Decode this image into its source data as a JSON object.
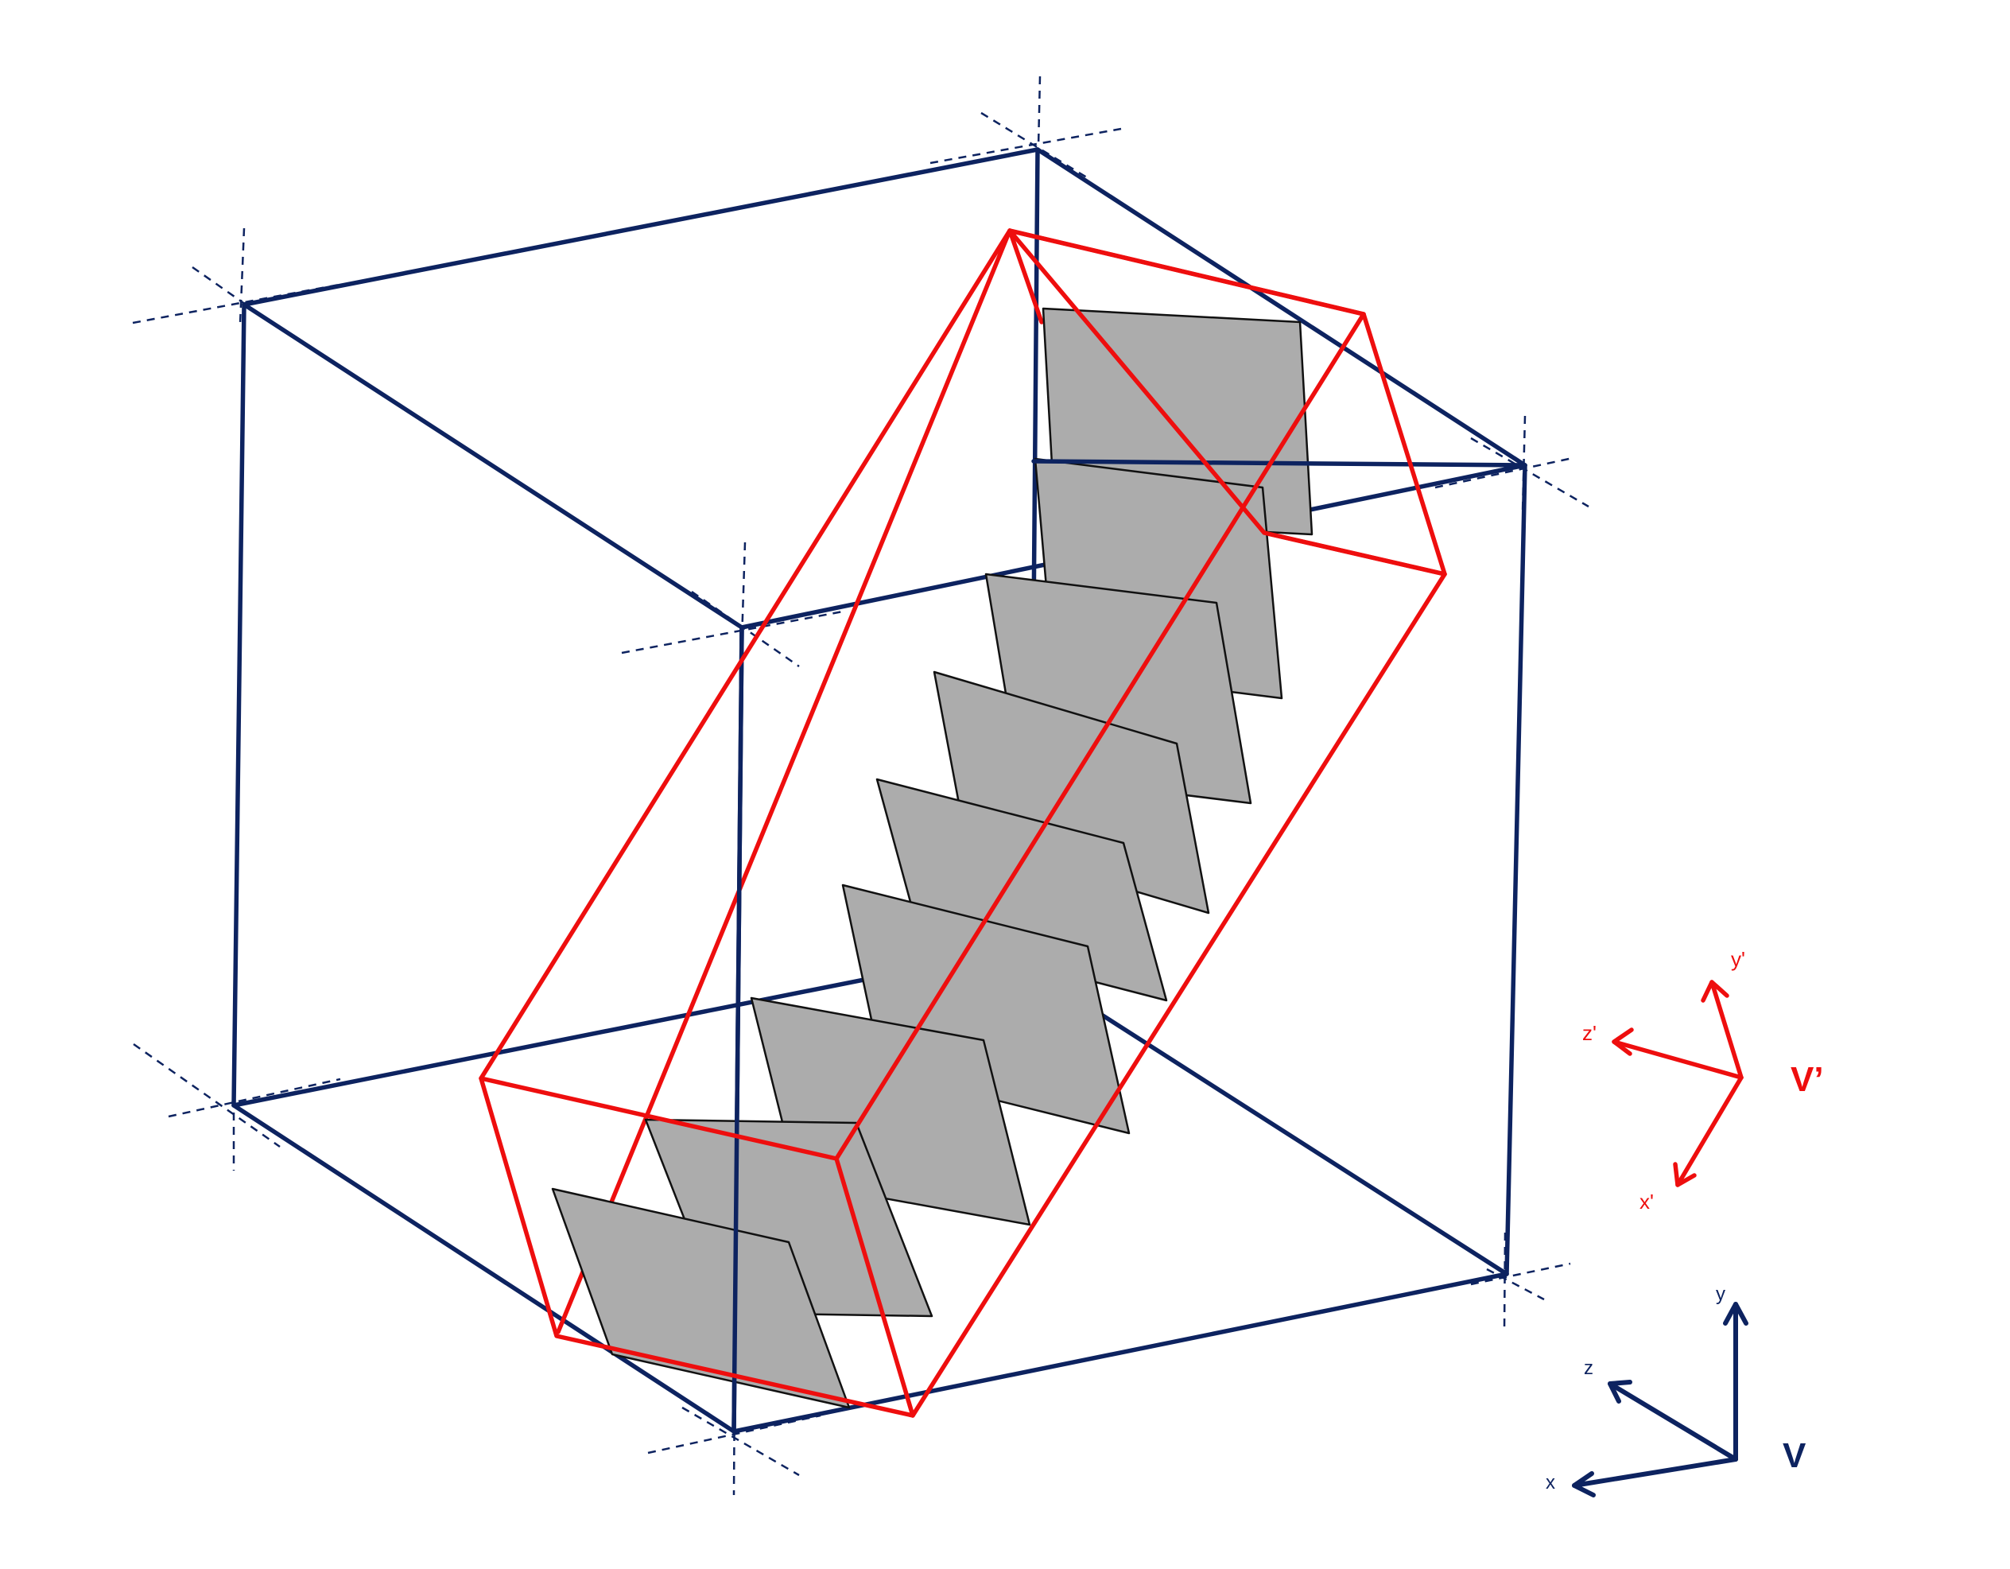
{
  "colors": {
    "navy": "#0d2360",
    "red": "#ee0e0e",
    "slice_fill": "#acacac",
    "slice_stroke": "#111111"
  },
  "axes_v": {
    "x_label": "x",
    "y_label": "y",
    "z_label": "z",
    "frame_label": "V"
  },
  "axes_v_prime": {
    "x_label": "x'",
    "y_label": "y'",
    "z_label": "z'",
    "frame_label": "V’"
  },
  "slice_count": 9
}
